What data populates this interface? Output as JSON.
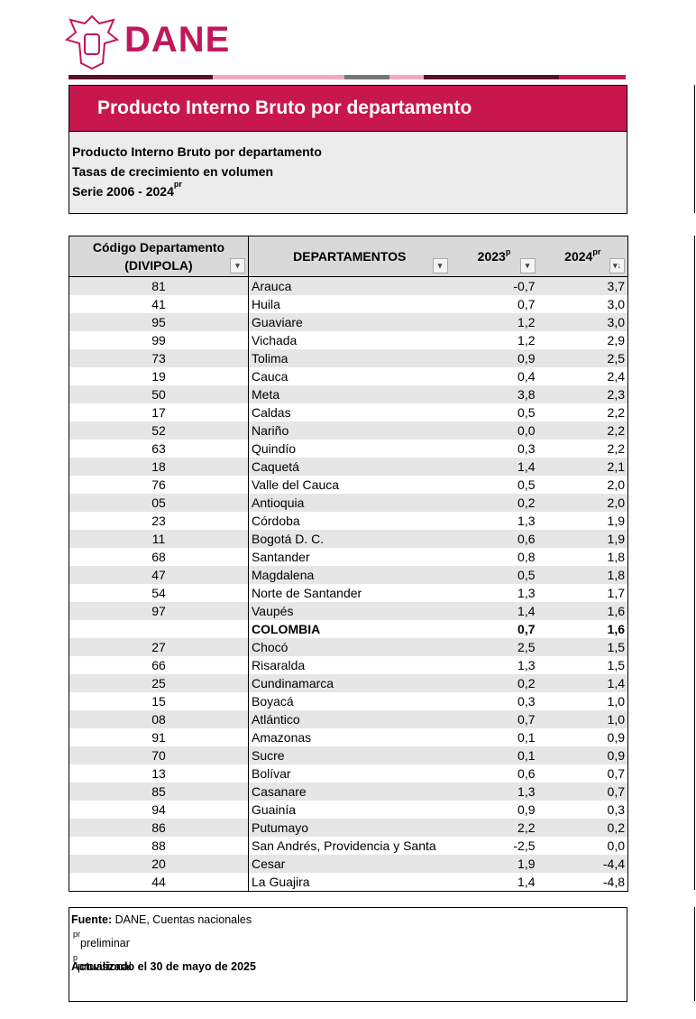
{
  "logo": {
    "text": "DANE"
  },
  "title_box": {
    "banner": "Producto Interno Bruto por departamento",
    "lines": [
      {
        "text": "Producto Interno Bruto por departamento"
      },
      {
        "text": "Tasas de crecimiento en volumen"
      },
      {
        "text": "Serie 2006 - 2024",
        "sup": "pr"
      }
    ]
  },
  "table": {
    "headers": [
      {
        "text": "Código Departamento (DIVIPOLA)"
      },
      {
        "text": "DEPARTAMENTOS"
      },
      {
        "text": "2023",
        "sup": "p"
      },
      {
        "text": "2024",
        "sup": "pr"
      }
    ],
    "rows": [
      [
        "81",
        "Arauca",
        "-0,7",
        "3,7"
      ],
      [
        "41",
        "Huila",
        "0,7",
        "3,0"
      ],
      [
        "95",
        "Guaviare",
        "1,2",
        "3,0"
      ],
      [
        "99",
        "Vichada",
        "1,2",
        "2,9"
      ],
      [
        "73",
        "Tolima",
        "0,9",
        "2,5"
      ],
      [
        "19",
        "Cauca",
        "0,4",
        "2,4"
      ],
      [
        "50",
        "Meta",
        "3,8",
        "2,3"
      ],
      [
        "17",
        "Caldas",
        "0,5",
        "2,2"
      ],
      [
        "52",
        "Nariño",
        "0,0",
        "2,2"
      ],
      [
        "63",
        "Quindío",
        "0,3",
        "2,2"
      ],
      [
        "18",
        "Caquetá",
        "1,4",
        "2,1"
      ],
      [
        "76",
        "Valle del Cauca",
        "0,5",
        "2,0"
      ],
      [
        "05",
        "Antioquia",
        "0,2",
        "2,0"
      ],
      [
        "23",
        "Córdoba",
        "1,3",
        "1,9"
      ],
      [
        "11",
        "Bogotá D. C.",
        "0,6",
        "1,9"
      ],
      [
        "68",
        "Santander",
        "0,8",
        "1,8"
      ],
      [
        "47",
        "Magdalena",
        "0,5",
        "1,8"
      ],
      [
        "54",
        "Norte de Santander",
        "1,3",
        "1,7"
      ],
      [
        "97",
        "Vaupés",
        "1,4",
        "1,6"
      ],
      [
        null,
        "COLOMBIA",
        "0,7",
        "1,6"
      ],
      [
        "27",
        "Chocó",
        "2,5",
        "1,5"
      ],
      [
        "66",
        "Risaralda",
        "1,3",
        "1,5"
      ],
      [
        "25",
        "Cundinamarca",
        "0,2",
        "1,4"
      ],
      [
        "15",
        "Boyacá",
        "0,3",
        "1,0"
      ],
      [
        "08",
        "Atlántico",
        "0,7",
        "1,0"
      ],
      [
        "91",
        "Amazonas",
        "0,1",
        "0,9"
      ],
      [
        "70",
        "Sucre",
        "0,1",
        "0,9"
      ],
      [
        "13",
        "Bolívar",
        "0,6",
        "0,7"
      ],
      [
        "85",
        "Casanare",
        "1,3",
        "0,7"
      ],
      [
        "94",
        "Guainía",
        "0,9",
        "0,3"
      ],
      [
        "86",
        "Putumayo",
        "2,2",
        "0,2"
      ],
      [
        "88",
        "San Andrés, Providencia y Santa",
        "-2,5",
        "0,0"
      ],
      [
        "20",
        "Cesar",
        "1,9",
        "-4,4"
      ],
      [
        "44",
        "La Guajira",
        "1,4",
        "-4,8"
      ]
    ],
    "bold_row": 19
  },
  "footer": {
    "source_label": "Fuente:",
    "source": "DANE, Cuentas nacionales",
    "notes": [
      {
        "sup": "pr",
        "text": "preliminar"
      },
      {
        "sup": "p",
        "text": "provisional"
      }
    ],
    "updated": "Actualizado el 30 de mayo de 2025"
  }
}
